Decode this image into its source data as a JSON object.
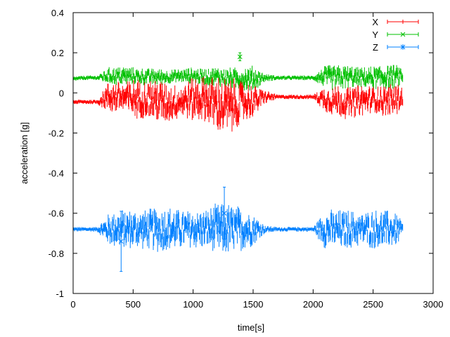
{
  "chart_data": {
    "type": "line",
    "xlabel": "time[s]",
    "ylabel": "acceleration [g]",
    "xlim": [
      0,
      3000
    ],
    "ylim": [
      -1,
      0.4
    ],
    "xticks": [
      "0",
      "500",
      "1000",
      "1500",
      "2000",
      "2500",
      "3000"
    ],
    "yticks": [
      "0.4",
      "0.2",
      "0",
      "-0.2",
      "-0.4",
      "-0.6",
      "-0.8",
      "-1"
    ],
    "grid": false,
    "legend_position": "top-right",
    "error_bars": true,
    "t": [
      0,
      100,
      200,
      300,
      400,
      500,
      600,
      700,
      800,
      900,
      1000,
      1100,
      1200,
      1300,
      1400,
      1500,
      1600,
      1700,
      1800,
      1900,
      2000,
      2100,
      2200,
      2300,
      2400,
      2500,
      2600,
      2700,
      2750
    ],
    "series": [
      {
        "name": "X",
        "color": "#ff0000",
        "marker": "+",
        "values": [
          -0.045,
          -0.045,
          -0.045,
          -0.02,
          -0.02,
          -0.03,
          -0.03,
          -0.04,
          -0.05,
          -0.04,
          -0.03,
          -0.03,
          -0.06,
          -0.07,
          -0.05,
          -0.04,
          -0.02,
          -0.02,
          -0.02,
          -0.02,
          -0.02,
          -0.03,
          -0.04,
          -0.05,
          -0.04,
          -0.03,
          -0.04,
          -0.03,
          -0.02
        ],
        "spread": [
          0.005,
          0.005,
          0.005,
          0.05,
          0.05,
          0.06,
          0.06,
          0.07,
          0.06,
          0.05,
          0.07,
          0.07,
          0.09,
          0.09,
          0.07,
          0.05,
          0.02,
          0.005,
          0.005,
          0.005,
          0.005,
          0.04,
          0.05,
          0.05,
          0.05,
          0.04,
          0.05,
          0.05,
          0.03
        ]
      },
      {
        "name": "Y",
        "color": "#00c000",
        "marker": "x",
        "values": [
          0.07,
          0.075,
          0.075,
          0.085,
          0.085,
          0.085,
          0.08,
          0.08,
          0.08,
          0.085,
          0.085,
          0.08,
          0.08,
          0.075,
          0.07,
          0.07,
          0.075,
          0.075,
          0.075,
          0.075,
          0.075,
          0.08,
          0.075,
          0.08,
          0.075,
          0.075,
          0.08,
          0.08,
          0.085
        ],
        "spread": [
          0.005,
          0.005,
          0.005,
          0.025,
          0.03,
          0.025,
          0.025,
          0.025,
          0.02,
          0.02,
          0.025,
          0.025,
          0.03,
          0.03,
          0.035,
          0.04,
          0.01,
          0.005,
          0.005,
          0.005,
          0.005,
          0.035,
          0.04,
          0.035,
          0.03,
          0.035,
          0.04,
          0.035,
          0.02
        ]
      },
      {
        "name": "Z",
        "color": "#0080ff",
        "marker": "*",
        "values": [
          -0.68,
          -0.68,
          -0.68,
          -0.68,
          -0.68,
          -0.68,
          -0.68,
          -0.68,
          -0.68,
          -0.68,
          -0.68,
          -0.68,
          -0.68,
          -0.68,
          -0.68,
          -0.68,
          -0.68,
          -0.68,
          -0.68,
          -0.68,
          -0.68,
          -0.68,
          -0.68,
          -0.68,
          -0.68,
          -0.68,
          -0.68,
          -0.68,
          -0.68
        ],
        "spread": [
          0.005,
          0.005,
          0.005,
          0.05,
          0.06,
          0.06,
          0.06,
          0.07,
          0.07,
          0.06,
          0.06,
          0.06,
          0.08,
          0.08,
          0.07,
          0.05,
          0.01,
          0.005,
          0.005,
          0.005,
          0.005,
          0.06,
          0.06,
          0.06,
          0.05,
          0.06,
          0.06,
          0.05,
          0.02
        ]
      }
    ],
    "outliers": [
      {
        "series": "Y",
        "t": 1390,
        "value": 0.18,
        "err": 0.02
      },
      {
        "series": "Z",
        "t": 400,
        "value": -0.74,
        "err": 0.15
      },
      {
        "series": "Z",
        "t": 1260,
        "value": -0.6,
        "err": 0.13
      }
    ]
  }
}
